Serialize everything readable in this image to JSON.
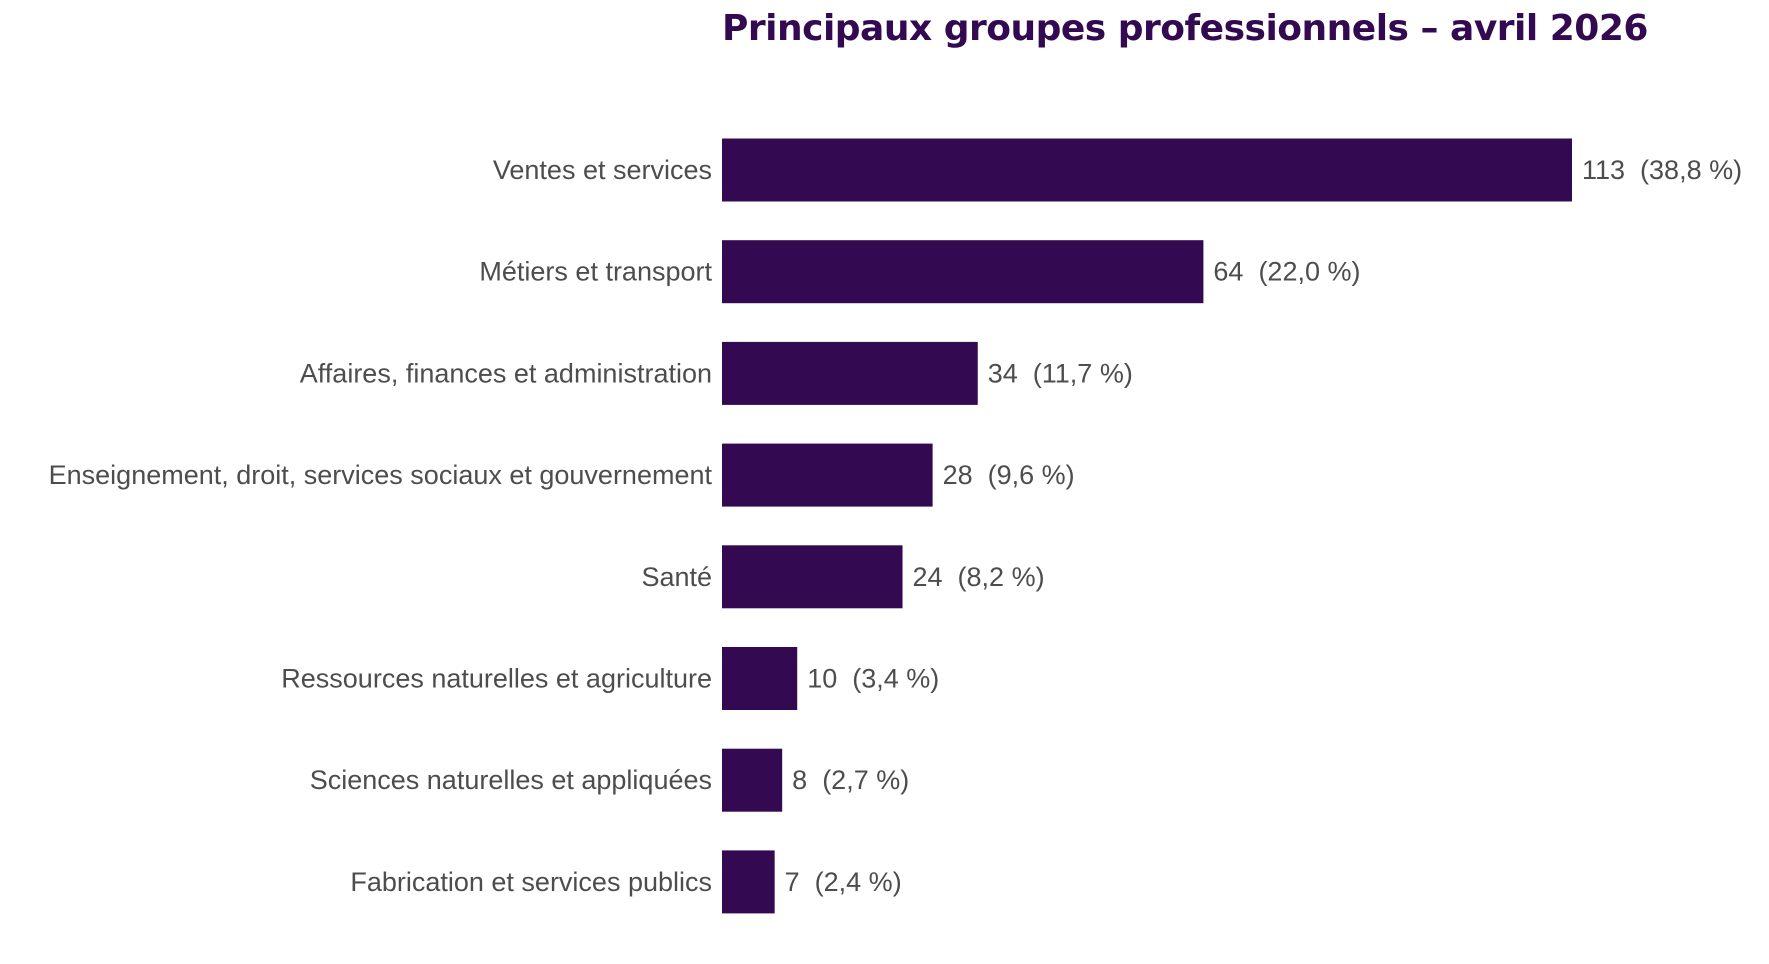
{
  "chart_data": {
    "type": "bar",
    "orientation": "horizontal",
    "title": "Principaux groupes professionnels – avril 2026",
    "categories": [
      "Ventes et services",
      "Métiers et transport",
      "Affaires, finances et administration",
      "Enseignement, droit, services sociaux et gouvernement",
      "Santé",
      "Ressources naturelles et agriculture",
      "Sciences naturelles et appliquées",
      "Fabrication et services publics"
    ],
    "values": [
      113,
      64,
      34,
      28,
      24,
      10,
      8,
      7
    ],
    "data_labels": [
      "113  (38,8 %)",
      "64  (22,0 %)",
      "34  (11,7 %)",
      "28  (9,6 %)",
      "24  (8,2 %)",
      "10  (3,4 %)",
      "8  (2,7 %)",
      "7  (2,4 %)"
    ],
    "xlim": [
      0,
      113
    ],
    "grid": false,
    "legend": "none",
    "bar_color": "#330a52",
    "title_color": "#330a52"
  }
}
